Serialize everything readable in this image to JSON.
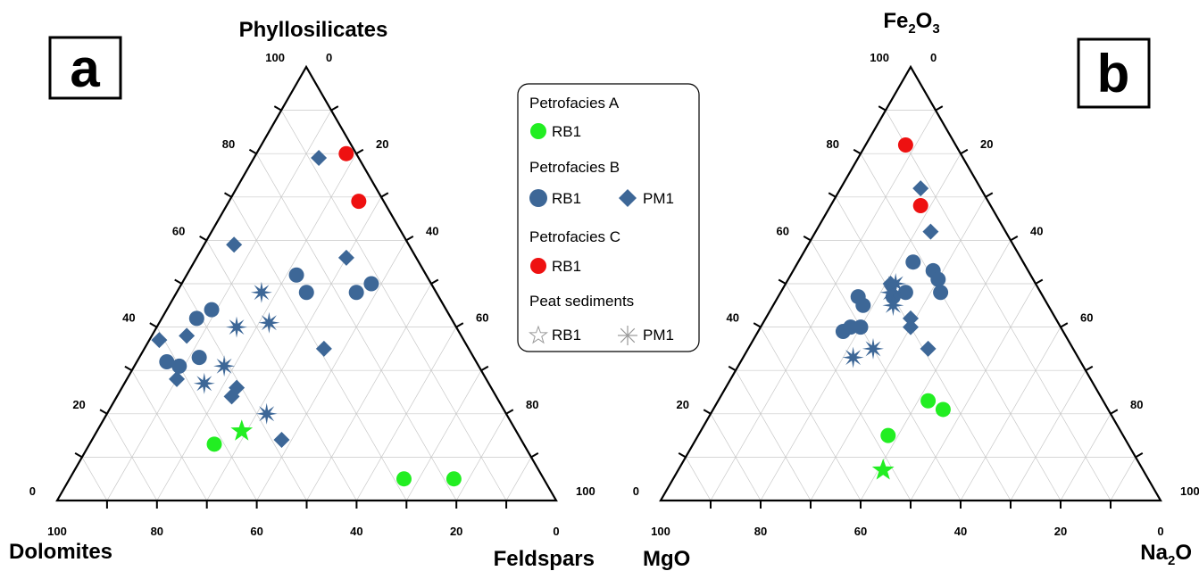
{
  "chart_data": [
    {
      "type": "scatter",
      "panel_label": "a",
      "vertices": {
        "top": "Phyllosilicates",
        "left": "Dolomites",
        "right": "Feldspars"
      },
      "top_sub": "",
      "left_sub": "",
      "right_sub": "",
      "axis_ticks": [
        "0",
        "20",
        "40",
        "60",
        "80",
        "100"
      ],
      "grid": true,
      "series": [
        {
          "name": "Petrofacies A RB1",
          "marker": "circle",
          "color": "#22ee22",
          "points": [
            [
              13,
              62,
              25
            ],
            [
              5,
              28,
              67
            ],
            [
              5,
              18,
              77
            ]
          ]
        },
        {
          "name": "Petrofacies A Peat RB1",
          "marker": "star5",
          "color": "#22ee22",
          "points": [
            [
              16,
              55,
              29
            ]
          ]
        },
        {
          "name": "Petrofacies B RB1",
          "marker": "circle",
          "color": "#3d6797",
          "points": [
            [
              32,
              62,
              6
            ],
            [
              31,
              60,
              9
            ],
            [
              33,
              55,
              12
            ],
            [
              42,
              51,
              7
            ],
            [
              44,
              47,
              9
            ],
            [
              52,
              26,
              22
            ],
            [
              48,
              26,
              26
            ],
            [
              48,
              16,
              36
            ],
            [
              50,
              12,
              38
            ]
          ]
        },
        {
          "name": "Petrofacies B PM1",
          "marker": "diamond",
          "color": "#3d6797",
          "points": [
            [
              37,
              61,
              2
            ],
            [
              28,
              62,
              10
            ],
            [
              38,
              55,
              7
            ],
            [
              24,
              53,
              23
            ],
            [
              26,
              51,
              23
            ],
            [
              14,
              48,
              38
            ],
            [
              59,
              35,
              6
            ],
            [
              35,
              29,
              36
            ],
            [
              56,
              14,
              30
            ],
            [
              79,
              8,
              13
            ]
          ]
        },
        {
          "name": "Peat sediments PM1",
          "marker": "star8",
          "color": "#3d6797",
          "points": [
            [
              27,
              57,
              16
            ],
            [
              31,
              51,
              18
            ],
            [
              20,
              48,
              32
            ],
            [
              40,
              44,
              16
            ],
            [
              48,
              35,
              17
            ],
            [
              41,
              37,
              22
            ]
          ]
        },
        {
          "name": "Petrofacies C RB1",
          "marker": "circle",
          "color": "#ee1111",
          "points": [
            [
              69,
              5,
              26
            ],
            [
              80,
              2,
              18
            ]
          ]
        }
      ]
    },
    {
      "type": "scatter",
      "panel_label": "b",
      "vertices": {
        "top": "Fe",
        "left": "MgO",
        "right": "Na"
      },
      "top_sub": "2",
      "top_mid": "O",
      "top_sub2": "3",
      "left_sub": "",
      "right_sub": "2",
      "right_tail": "O",
      "axis_ticks": [
        "0",
        "20",
        "40",
        "60",
        "80",
        "100"
      ],
      "grid": true,
      "series": [
        {
          "name": "Petrofacies A RB1",
          "marker": "circle",
          "color": "#22ee22",
          "points": [
            [
              15,
              47,
              38
            ],
            [
              23,
              35,
              42
            ],
            [
              21,
              33,
              46
            ]
          ]
        },
        {
          "name": "Petrofacies A Peat RB1",
          "marker": "star5",
          "color": "#22ee22",
          "points": [
            [
              7,
              52,
              41
            ]
          ]
        },
        {
          "name": "Petrofacies B RB1",
          "marker": "circle",
          "color": "#3d6797",
          "points": [
            [
              39,
              44,
              17
            ],
            [
              40,
              42,
              18
            ],
            [
              40,
              40,
              20
            ],
            [
              45,
              37,
              18
            ],
            [
              47,
              37,
              16
            ],
            [
              47,
              30,
              23
            ],
            [
              48,
              27,
              25
            ],
            [
              55,
              22,
              23
            ],
            [
              48,
              20,
              32
            ],
            [
              53,
              19,
              28
            ],
            [
              51,
              19,
              30
            ]
          ]
        },
        {
          "name": "Petrofacies B PM1",
          "marker": "diamond",
          "color": "#3d6797",
          "points": [
            [
              40,
              30,
              30
            ],
            [
              42,
              29,
              29
            ],
            [
              50,
              29,
              21
            ],
            [
              35,
              29,
              36
            ],
            [
              62,
              15,
              23
            ],
            [
              72,
              12,
              16
            ]
          ]
        },
        {
          "name": "Peat sediments PM1",
          "marker": "star8",
          "color": "#3d6797",
          "points": [
            [
              33,
              45,
              22
            ],
            [
              35,
              40,
              25
            ],
            [
              48,
              30,
              22
            ],
            [
              50,
              28,
              22
            ],
            [
              45,
              31,
              24
            ]
          ]
        },
        {
          "name": "Petrofacies C RB1",
          "marker": "circle",
          "color": "#ee1111",
          "points": [
            [
              68,
              14,
              18
            ],
            [
              82,
              10,
              8
            ]
          ]
        }
      ]
    }
  ],
  "legend": {
    "groups": [
      {
        "title": "Petrofacies A",
        "items": [
          {
            "label": "RB1",
            "marker": "circle",
            "color": "#22ee22"
          }
        ]
      },
      {
        "title": "Petrofacies B",
        "items": [
          {
            "label": "RB1",
            "marker": "circle",
            "color": "#3d6797"
          },
          {
            "label": "PM1",
            "marker": "diamond",
            "color": "#3d6797"
          }
        ]
      },
      {
        "title": "Petrofacies C",
        "items": [
          {
            "label": "RB1",
            "marker": "circle",
            "color": "#ee1111"
          }
        ]
      },
      {
        "title": "Peat sediments",
        "items": [
          {
            "label": "RB1",
            "marker": "star5-outline",
            "color": "#999999"
          },
          {
            "label": "PM1",
            "marker": "star8-outline",
            "color": "#999999"
          }
        ]
      }
    ]
  }
}
